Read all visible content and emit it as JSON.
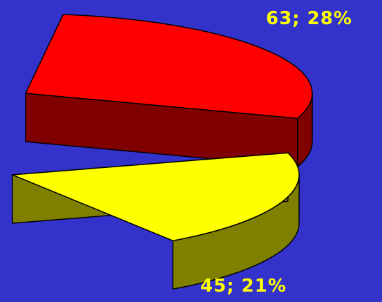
{
  "chart_data": {
    "type": "pie",
    "title": "",
    "style": "3d-exploded",
    "background_color": "#3333cc",
    "label_color": "#ffff00",
    "slices": [
      {
        "value": 63,
        "percent": 28,
        "label": "63; 28%",
        "color": "#ff0000",
        "side_color": "#800000"
      },
      {
        "value": 45,
        "percent": 21,
        "label": "45; 21%",
        "color": "#ffff00",
        "side_color": "#808000"
      }
    ]
  }
}
